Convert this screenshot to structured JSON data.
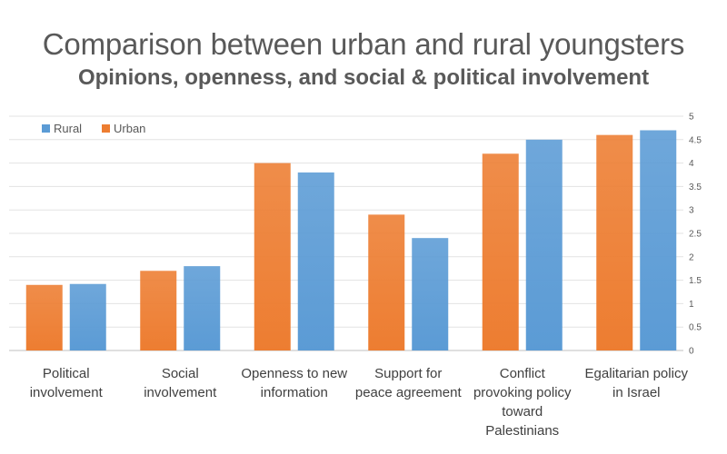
{
  "chart_data": {
    "type": "bar",
    "title": "Comparison between urban and rural youngsters",
    "subtitle": "Opinions, openness, and social & political involvement",
    "categories": [
      [
        "Political",
        "involvement"
      ],
      [
        "Social",
        "involvement"
      ],
      [
        "Openness to new",
        "information"
      ],
      [
        "Support for",
        "peace agreement"
      ],
      [
        "Conflict",
        "provoking policy",
        "toward",
        "Palestinians"
      ],
      [
        "Egalitarian policy",
        "in Israel"
      ]
    ],
    "series": [
      {
        "name": "Urban",
        "color": "#ED7D31",
        "values": [
          1.4,
          1.7,
          4.0,
          2.9,
          4.2,
          4.6
        ]
      },
      {
        "name": "Rural",
        "color": "#5B9BD5",
        "values": [
          1.42,
          1.8,
          3.8,
          2.4,
          4.5,
          4.7
        ]
      }
    ],
    "legend": [
      {
        "name": "Rural",
        "color": "#5B9BD5"
      },
      {
        "name": "Urban",
        "color": "#ED7D31"
      }
    ],
    "legend_position": "top-left",
    "ylim": [
      0,
      5
    ],
    "yticks": [
      "0",
      "0.5",
      "1",
      "1.5",
      "2",
      "2.5",
      "3",
      "3.5",
      "4",
      "4.5",
      "5"
    ],
    "y_axis_side": "right",
    "grid": true
  }
}
